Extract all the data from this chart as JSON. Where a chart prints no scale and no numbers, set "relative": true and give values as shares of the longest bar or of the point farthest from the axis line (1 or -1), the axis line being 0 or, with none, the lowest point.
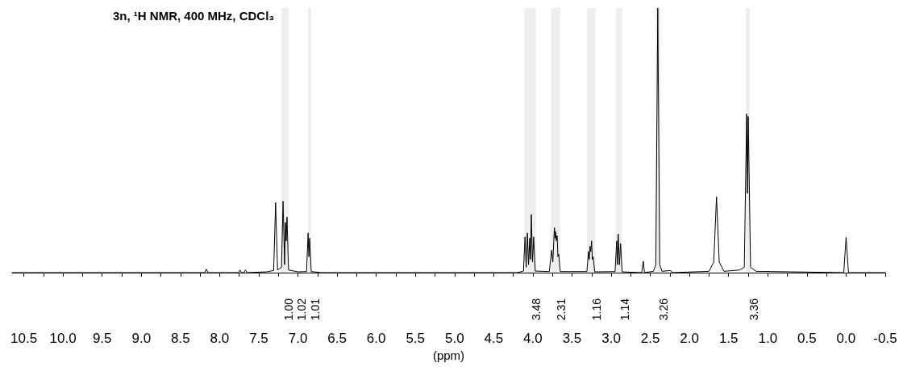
{
  "chart_data": {
    "type": "line",
    "relative": true,
    "title": "3n, ¹H NMR, 400 MHz, CDCl₃",
    "xlabel": "(ppm)",
    "color": "#000000",
    "marker": "none",
    "xlim": [
      10.65,
      -0.5
    ],
    "xticks": [
      {
        "value": 10.5,
        "label": "10.5"
      },
      {
        "value": 10.25,
        "label": null
      },
      {
        "value": 10,
        "label": "10.0"
      },
      {
        "value": 9.75,
        "label": null
      },
      {
        "value": 9.5,
        "label": "9.5"
      },
      {
        "value": 9.25,
        "label": null
      },
      {
        "value": 9,
        "label": "9.0"
      },
      {
        "value": 8.75,
        "label": null
      },
      {
        "value": 8.5,
        "label": "8.5"
      },
      {
        "value": 8.25,
        "label": null
      },
      {
        "value": 8,
        "label": "8.0"
      },
      {
        "value": 7.75,
        "label": null
      },
      {
        "value": 7.5,
        "label": "7.5"
      },
      {
        "value": 7.25,
        "label": null
      },
      {
        "value": 7,
        "label": "7.0"
      },
      {
        "value": 6.75,
        "label": null
      },
      {
        "value": 6.5,
        "label": "6.5"
      },
      {
        "value": 6.25,
        "label": null
      },
      {
        "value": 6,
        "label": "6.0"
      },
      {
        "value": 5.75,
        "label": null
      },
      {
        "value": 5.5,
        "label": "5.5"
      },
      {
        "value": 5.25,
        "label": null
      },
      {
        "value": 5,
        "label": "5.0"
      },
      {
        "value": 4.75,
        "label": null
      },
      {
        "value": 4.5,
        "label": "4.5"
      },
      {
        "value": 4.25,
        "label": null
      },
      {
        "value": 4,
        "label": "4.0"
      },
      {
        "value": 3.75,
        "label": null
      },
      {
        "value": 3.5,
        "label": "3.5"
      },
      {
        "value": 3.25,
        "label": null
      },
      {
        "value": 3,
        "label": "3.0"
      },
      {
        "value": 2.75,
        "label": null
      },
      {
        "value": 2.5,
        "label": "2.5"
      },
      {
        "value": 2.25,
        "label": null
      },
      {
        "value": 2,
        "label": "2.0"
      },
      {
        "value": 1.75,
        "label": null
      },
      {
        "value": 1.5,
        "label": "1.5"
      },
      {
        "value": 1.25,
        "label": null
      },
      {
        "value": 1,
        "label": "1.0"
      },
      {
        "value": 0.75,
        "label": null
      },
      {
        "value": 0.5,
        "label": "0.5"
      },
      {
        "value": 0.25,
        "label": null
      },
      {
        "value": 0,
        "label": "0.0"
      },
      {
        "value": -0.25,
        "label": null
      },
      {
        "value": -0.5,
        "label": "-0.5"
      }
    ],
    "x": [
      10.65,
      8.19,
      8.17,
      8.15,
      7.76,
      7.74,
      7.72,
      7.69,
      7.67,
      7.65,
      7.4,
      7.31,
      7.285,
      7.26,
      7.21,
      7.19,
      7.17,
      7.16,
      7.15,
      7.14,
      7.12,
      7.0,
      6.89,
      6.87,
      6.86,
      6.85,
      6.83,
      6.7,
      4.2,
      4.12,
      4.1,
      4.085,
      4.07,
      4.055,
      4.04,
      4.03,
      4.02,
      4.005,
      3.99,
      3.97,
      3.79,
      3.76,
      3.745,
      3.725,
      3.715,
      3.71,
      3.7,
      3.69,
      3.68,
      3.67,
      3.65,
      3.31,
      3.29,
      3.28,
      3.27,
      3.26,
      3.25,
      3.24,
      3.23,
      3.21,
      2.95,
      2.93,
      2.92,
      2.91,
      2.895,
      2.88,
      2.86,
      2.61,
      2.59,
      2.575,
      2.46,
      2.43,
      2.405,
      2.38,
      2.35,
      2.24,
      2.22,
      1.75,
      1.69,
      1.655,
      1.62,
      1.56,
      1.36,
      1.3,
      1.27,
      1.26,
      1.25,
      1.22,
      1.15,
      0.03,
      0,
      -0.03,
      -0.5
    ],
    "values": [
      0,
      0,
      0.013,
      0,
      0,
      0.01,
      0,
      0,
      0.01,
      0,
      0.003,
      0.008,
      0.265,
      0.01,
      0.02,
      0.27,
      0.03,
      0.19,
      0.12,
      0.21,
      0.01,
      0.003,
      0.004,
      0.15,
      0.06,
      0.13,
      0.004,
      0,
      0,
      0.006,
      0.135,
      0.02,
      0.15,
      0.03,
      0.13,
      0.05,
      0.22,
      0.04,
      0.135,
      0.006,
      0.004,
      0.085,
      0.04,
      0.17,
      0.13,
      0.155,
      0.12,
      0.14,
      0.06,
      0.07,
      0.004,
      0.004,
      0.08,
      0.05,
      0.1,
      0.08,
      0.12,
      0.05,
      0.06,
      0.003,
      0.004,
      0.12,
      0.03,
      0.146,
      0.03,
      0.11,
      0.003,
      0,
      0.043,
      0,
      0.005,
      0.03,
      1,
      0.03,
      0.005,
      0.008,
      0,
      0.005,
      0.04,
      0.287,
      0.04,
      0.005,
      0.01,
      0.02,
      0.6,
      0.3,
      0.59,
      0.02,
      0.005,
      0,
      0.134,
      0,
      0
    ],
    "bands": [
      {
        "axis": "x",
        "from": 7.21,
        "to": 7.17,
        "label": "1.00"
      },
      {
        "axis": "x",
        "from": 7.17,
        "to": 7.12,
        "label": "1.02"
      },
      {
        "axis": "x",
        "from": 6.87,
        "to": 6.83,
        "label": "1.01"
      },
      {
        "axis": "x",
        "from": 4.11,
        "to": 3.96,
        "label": "3.48"
      },
      {
        "axis": "x",
        "from": 3.77,
        "to": 3.65,
        "label": "2.31"
      },
      {
        "axis": "x",
        "from": 3.31,
        "to": 3.2,
        "label": "1.16"
      },
      {
        "axis": "x",
        "from": 2.94,
        "to": 2.86,
        "label": "1.14"
      },
      {
        "axis": "x",
        "from": 2.43,
        "to": 2.37,
        "label": "3.26"
      },
      {
        "axis": "x",
        "from": 1.28,
        "to": 1.23,
        "label": "3.36"
      }
    ]
  }
}
